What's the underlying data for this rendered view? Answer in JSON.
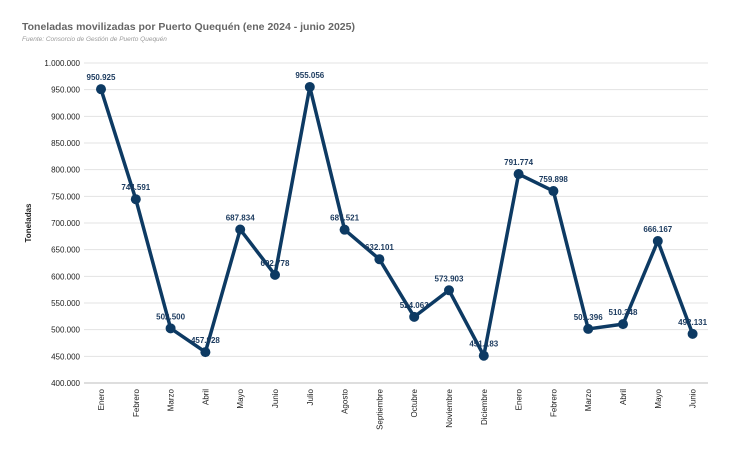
{
  "title": "Toneladas movilizadas por Puerto Quequén (ene 2024 - junio 2025)",
  "subtitle": "Fuente: Consorcio de Gestión de Puerto Quequén",
  "colors": {
    "line": "#0d3a63",
    "grid": "#e3e3e3",
    "label": "#1b3a5e"
  },
  "chart_data": {
    "type": "line",
    "title": "Toneladas movilizadas por Puerto Quequén (ene 2024 - junio 2025)",
    "ylabel": "Toneladas",
    "xlabel": "",
    "ylim": [
      400000,
      1000000
    ],
    "y_ticks": [
      "400.000",
      "450.000",
      "500.000",
      "550.000",
      "600.000",
      "650.000",
      "700.000",
      "750.000",
      "800.000",
      "850.000",
      "900.000",
      "950.000",
      "1.000.000"
    ],
    "grid": true,
    "legend": "none",
    "categories": [
      "Enero",
      "Febrero",
      "Marzo",
      "Abril",
      "Mayo",
      "Junio",
      "Julio",
      "Agosto",
      "Septiembre",
      "Octubre",
      "Noviembre",
      "Diciembre",
      "Enero",
      "Febrero",
      "Marzo",
      "Abril",
      "Mayo",
      "Junio"
    ],
    "values": [
      950925,
      744591,
      502500,
      457928,
      687834,
      602778,
      955056,
      687521,
      632101,
      524063,
      573903,
      451183,
      791774,
      759898,
      501396,
      510348,
      666167,
      492131
    ],
    "value_labels": [
      "950.925",
      "744.591",
      "502.500",
      "457.928",
      "687.834",
      "602.778",
      "955.056",
      "687.521",
      "632.101",
      "524.063",
      "573.903",
      "451.183",
      "791.774",
      "759.898",
      "501.396",
      "510.348",
      "666.167",
      "492.131"
    ]
  }
}
